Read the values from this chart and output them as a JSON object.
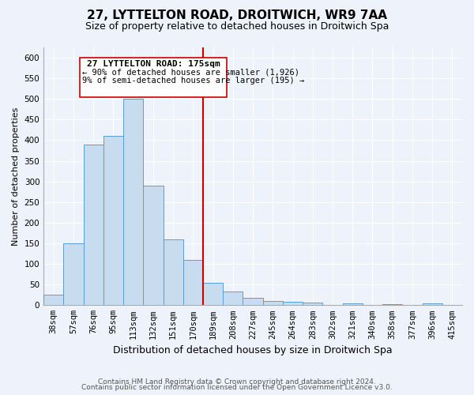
{
  "title": "27, LYTTELTON ROAD, DROITWICH, WR9 7AA",
  "subtitle": "Size of property relative to detached houses in Droitwich Spa",
  "xlabel": "Distribution of detached houses by size in Droitwich Spa",
  "ylabel": "Number of detached properties",
  "bin_labels": [
    "38sqm",
    "57sqm",
    "76sqm",
    "95sqm",
    "113sqm",
    "132sqm",
    "151sqm",
    "170sqm",
    "189sqm",
    "208sqm",
    "227sqm",
    "245sqm",
    "264sqm",
    "283sqm",
    "302sqm",
    "321sqm",
    "340sqm",
    "358sqm",
    "377sqm",
    "396sqm",
    "415sqm"
  ],
  "bar_heights": [
    25,
    150,
    390,
    410,
    500,
    290,
    160,
    110,
    55,
    33,
    18,
    11,
    8,
    7,
    0,
    5,
    0,
    3,
    0,
    4,
    0
  ],
  "bar_color": "#c8dcf0",
  "bar_edge_color": "#5a9fd4",
  "vline_x": 7.5,
  "annotation_title": "27 LYTTELTON ROAD: 175sqm",
  "annotation_line1": "← 90% of detached houses are smaller (1,926)",
  "annotation_line2": "9% of semi-detached houses are larger (195) →",
  "vline_color": "#cc0000",
  "annotation_box_color": "#ffffff",
  "annotation_box_edge": "#cc0000",
  "ylim": [
    0,
    625
  ],
  "yticks": [
    0,
    50,
    100,
    150,
    200,
    250,
    300,
    350,
    400,
    450,
    500,
    550,
    600
  ],
  "footer_line1": "Contains HM Land Registry data © Crown copyright and database right 2024.",
  "footer_line2": "Contains public sector information licensed under the Open Government Licence v3.0.",
  "bg_color": "#eef2fa",
  "plot_bg_color": "#eef2fa",
  "grid_color": "#ffffff",
  "title_fontsize": 11,
  "subtitle_fontsize": 9,
  "xlabel_fontsize": 9,
  "ylabel_fontsize": 8,
  "tick_fontsize": 7.5,
  "footer_fontsize": 6.5
}
